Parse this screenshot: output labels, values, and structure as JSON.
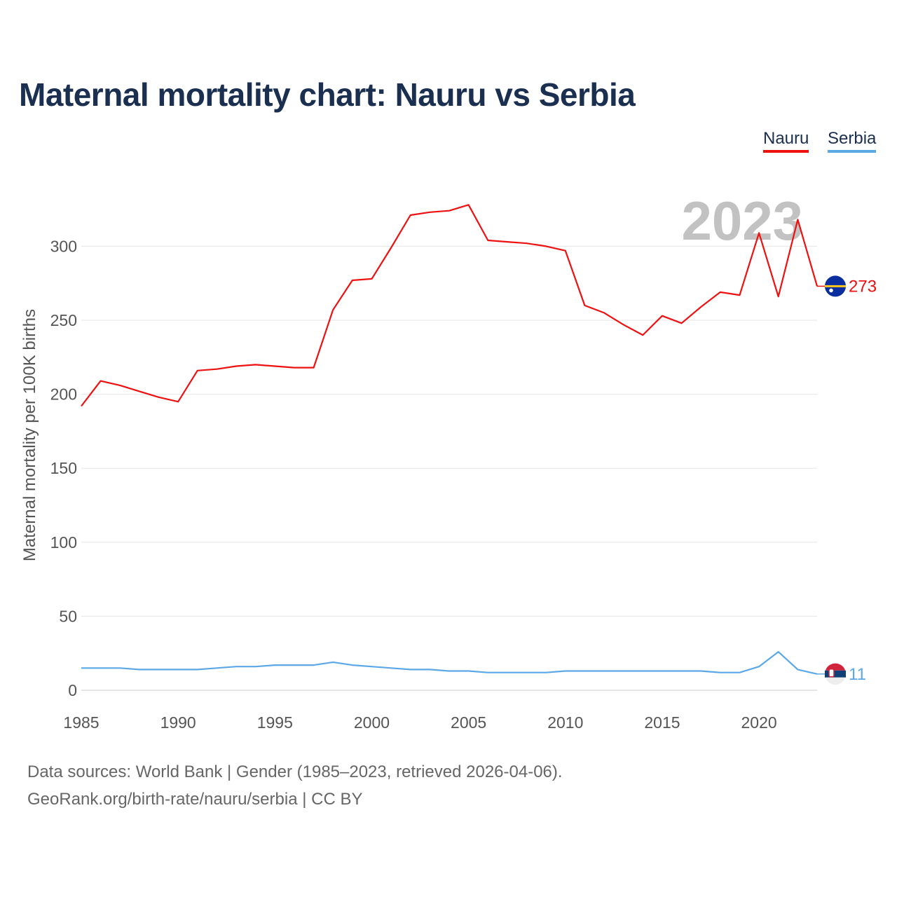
{
  "title": "Maternal mortality chart: Nauru vs Serbia",
  "legend": {
    "items": [
      {
        "label": "Nauru",
        "color": "#ee1111"
      },
      {
        "label": "Serbia",
        "color": "#5ca8e6"
      }
    ]
  },
  "year_watermark": "2023",
  "footer": {
    "source": "Data sources: World Bank | Gender (1985–2023, retrieved 2026-04-06).",
    "credit": "GeoRank.org/birth-rate/nauru/serbia | CC BY"
  },
  "chart_data": {
    "type": "line",
    "title": "Maternal mortality chart: Nauru vs Serbia",
    "xlabel": "",
    "ylabel": "Maternal mortality per 100K births",
    "xlim": [
      1985,
      2023
    ],
    "ylim": [
      0,
      340
    ],
    "x_ticks": [
      1985,
      1990,
      1995,
      2000,
      2005,
      2010,
      2015,
      2020
    ],
    "y_ticks": [
      0,
      50,
      100,
      150,
      200,
      250,
      300
    ],
    "grid": true,
    "legend_position": "top-right",
    "x": [
      1985,
      1986,
      1987,
      1988,
      1989,
      1990,
      1991,
      1992,
      1993,
      1994,
      1995,
      1996,
      1997,
      1998,
      1999,
      2000,
      2001,
      2002,
      2003,
      2004,
      2005,
      2006,
      2007,
      2008,
      2009,
      2010,
      2011,
      2012,
      2013,
      2014,
      2015,
      2016,
      2017,
      2018,
      2019,
      2020,
      2021,
      2022,
      2023
    ],
    "series": [
      {
        "name": "Nauru",
        "color": "#ee1111",
        "end_label": "273",
        "flag": "nauru-flag",
        "values": [
          192,
          209,
          206,
          202,
          198,
          195,
          216,
          217,
          219,
          220,
          219,
          218,
          218,
          257,
          277,
          278,
          299,
          321,
          323,
          324,
          328,
          304,
          303,
          302,
          300,
          297,
          260,
          255,
          247,
          240,
          253,
          248,
          259,
          269,
          267,
          309,
          266,
          318,
          273
        ]
      },
      {
        "name": "Serbia",
        "color": "#5ca8e6",
        "end_label": "11",
        "flag": "serbia-flag",
        "values": [
          15,
          15,
          15,
          14,
          14,
          14,
          14,
          15,
          16,
          16,
          17,
          17,
          17,
          19,
          17,
          16,
          15,
          14,
          14,
          13,
          13,
          12,
          12,
          12,
          12,
          13,
          13,
          13,
          13,
          13,
          13,
          13,
          13,
          12,
          12,
          16,
          26,
          14,
          11
        ]
      }
    ]
  }
}
